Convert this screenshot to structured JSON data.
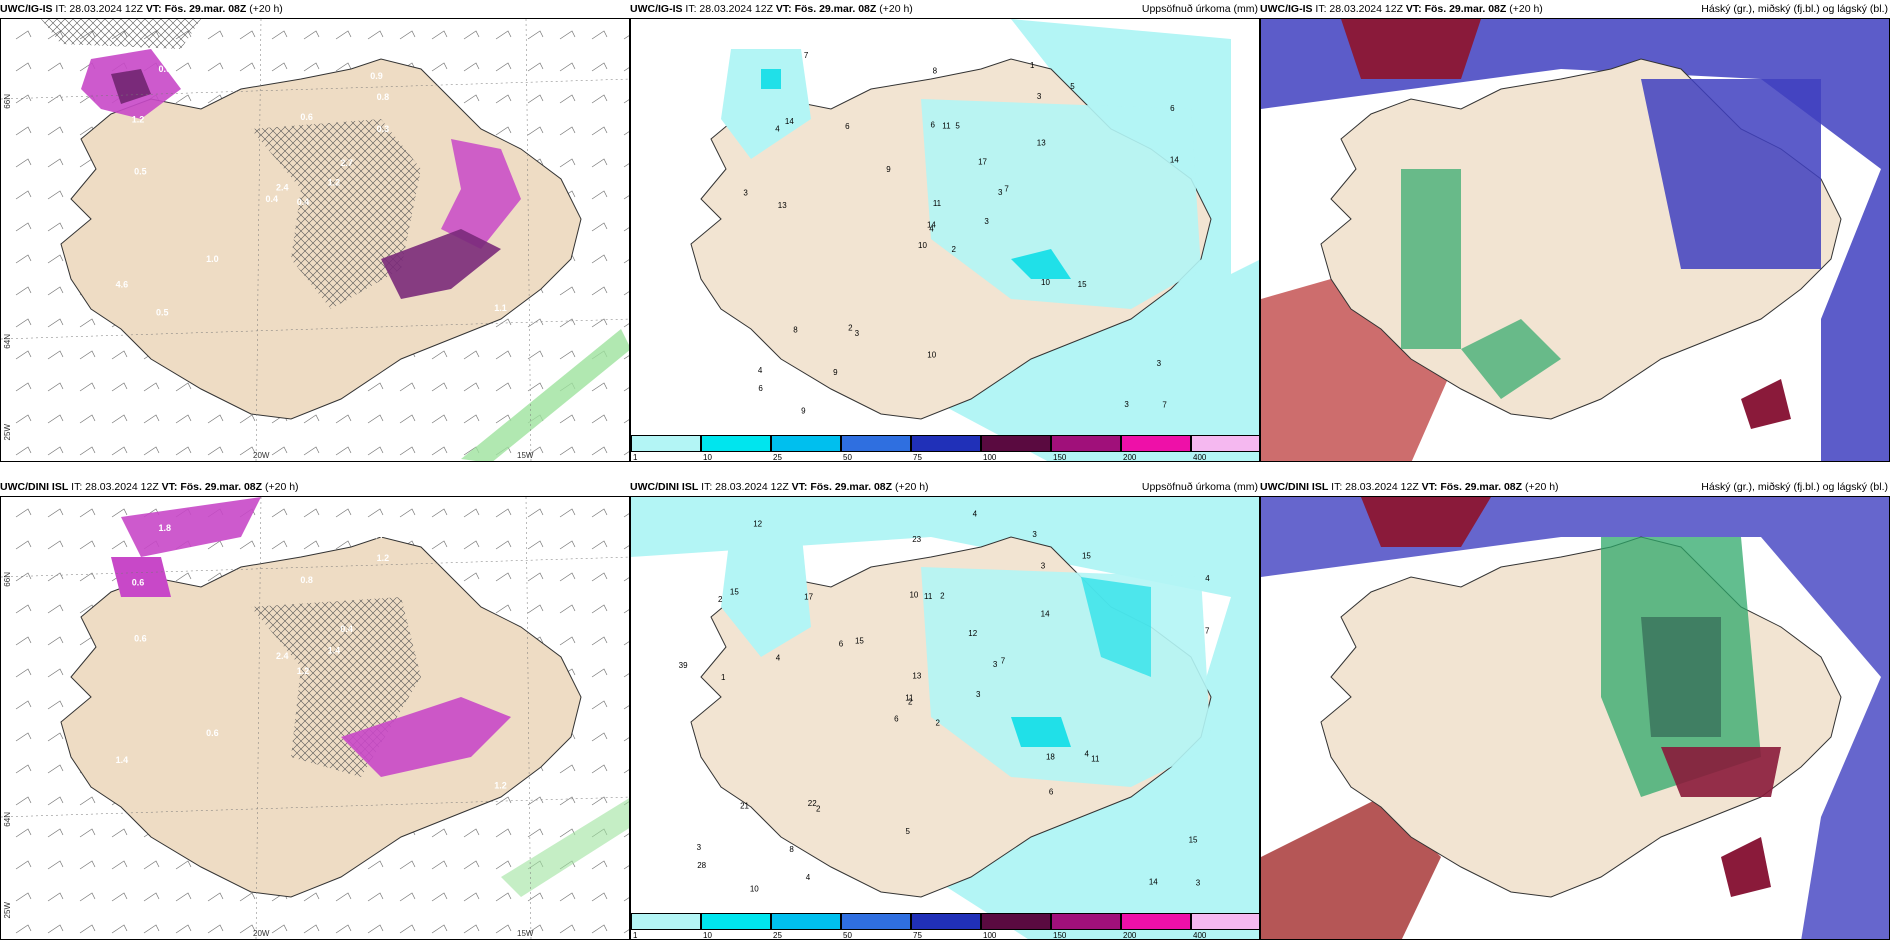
{
  "colors": {
    "land": "#f2e4d2",
    "land_dark": "#d7c0a6",
    "precip_light": "#b3f5f5",
    "precip_mid": "#20e0e8",
    "cloud_high": "#8a1a3a",
    "cloud_mid": "#2ea86a",
    "cloud_low": "#3a3ac8",
    "ice_purple": "#c040c0",
    "snow_green": "#9ee29e"
  },
  "rows": [
    {
      "model": "UWC/IG-IS",
      "panels": [
        {
          "title_model": "UWC/IG-IS",
          "it_label": "IT: 28.03.2024 12Z",
          "vt_label": "VT: Fös. 29.mar. 08Z",
          "lead": "(+20 h)",
          "right_label": ""
        },
        {
          "title_model": "UWC/IG-IS",
          "it_label": "IT: 28.03.2024 12Z",
          "vt_label": "VT: Fös. 29.mar. 08Z",
          "lead": "(+20 h)",
          "right_label": "Uppsöfnuð úrkoma (mm)"
        },
        {
          "title_model": "UWC/IG-IS",
          "it_label": "IT: 28.03.2024 12Z",
          "vt_label": "VT: Fös. 29.mar. 08Z",
          "lead": "(+20 h)",
          "right_label": "Háský (gr.), miðský (fj.bl.) og lágský (bl.)"
        }
      ],
      "icing_values": [
        "0.4",
        "1.2",
        "2.4",
        "4.6",
        "2.7",
        "1.0",
        "0.9",
        "0.6",
        "0.8",
        "1.2",
        "0.6",
        "1.1",
        "0.5",
        "0.3",
        "0.4",
        "0.3",
        "0.5"
      ],
      "precip_values": [
        "2",
        "4",
        "4",
        "4",
        "3",
        "3",
        "1",
        "5",
        "3",
        "3",
        "7",
        "7",
        "13",
        "6",
        "10",
        "13",
        "9",
        "6",
        "17",
        "8",
        "9",
        "6",
        "9",
        "11",
        "7",
        "15",
        "14",
        "8",
        "3",
        "10",
        "14",
        "14",
        "10",
        "11",
        "6",
        "5",
        "2",
        "3",
        "3"
      ]
    },
    {
      "model": "UWC/DINI ISL",
      "panels": [
        {
          "title_model": "UWC/DINI ISL",
          "it_label": "IT: 28.03.2024 12Z",
          "vt_label": "VT: Fös. 29.mar. 08Z",
          "lead": "(+20 h)",
          "right_label": ""
        },
        {
          "title_model": "UWC/DINI ISL",
          "it_label": "IT: 28.03.2024 12Z",
          "vt_label": "VT: Fös. 29.mar. 08Z",
          "lead": "(+20 h)",
          "right_label": "Uppsöfnuð úrkoma (mm)"
        },
        {
          "title_model": "UWC/DINI ISL",
          "it_label": "IT: 28.03.2024 12Z",
          "vt_label": "VT: Fös. 29.mar. 08Z",
          "lead": "(+20 h)",
          "right_label": "Háský (gr.), miðský (fj.bl.) og lágský (bl.)"
        }
      ],
      "icing_values": [
        "1.2",
        "0.6",
        "2.4",
        "1.4",
        "0.4",
        "0.6",
        "0.4",
        "0.8",
        "1.2",
        "1.4",
        "1.8",
        "1.2",
        "0.6",
        "0.5"
      ],
      "precip_values": [
        "2",
        "2",
        "2",
        "3",
        "3",
        "2",
        "3",
        "2",
        "3",
        "3",
        "12",
        "3",
        "1",
        "4",
        "6",
        "14",
        "10",
        "10",
        "12",
        "21",
        "15",
        "28",
        "8",
        "11",
        "7",
        "11",
        "15",
        "23",
        "39",
        "18",
        "7",
        "11",
        "5",
        "13",
        "17",
        "15",
        "22",
        "14",
        "15",
        "4",
        "4",
        "6",
        "4",
        "6",
        "4"
      ]
    }
  ],
  "axis_labels": {
    "lat_66": "66N",
    "lat_64": "64N",
    "lat_66b": "66N",
    "lat_64b": "64N",
    "lon_20w": "20W",
    "lon_15w": "15W",
    "lon_25w": "25W"
  },
  "colorbar": {
    "ticks": [
      "1",
      "10",
      "25",
      "50",
      "75",
      "100",
      "150",
      "200",
      "400"
    ],
    "colors": [
      "#b3f5f5",
      "#00e5ee",
      "#00bfee",
      "#2f6fe0",
      "#2030b8",
      "#5a0a40",
      "#a0107a",
      "#ee10a8",
      "#f5b8f0"
    ]
  }
}
